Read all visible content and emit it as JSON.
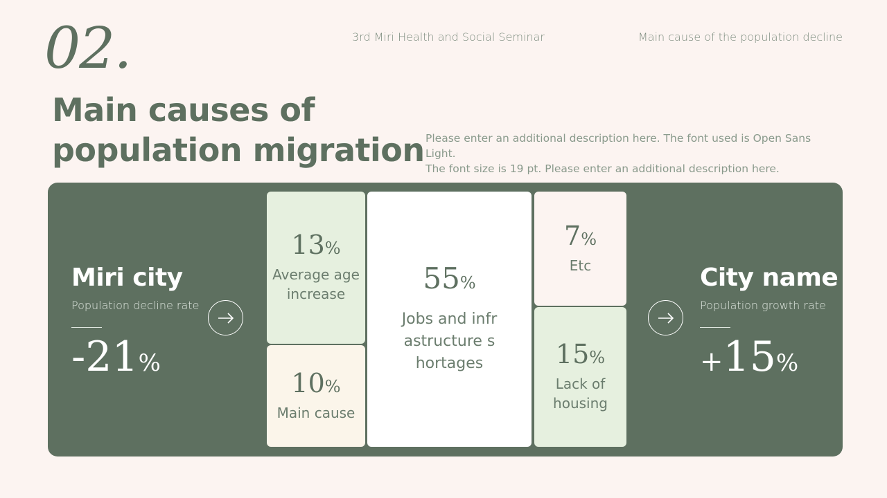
{
  "slide_number": "02.",
  "header": {
    "seminar": "3rd Miri Health and Social Seminar",
    "section": "Main cause of the population decline"
  },
  "title": {
    "line1": "Main causes of",
    "line2": "population migration"
  },
  "description": {
    "line1": "Please enter an additional description here. The font used is Open Sans Light.",
    "line2": "The font size is 19 pt. Please enter an additional description here."
  },
  "left": {
    "city": "Miri city",
    "rate_label": "Population decline rate",
    "value": "-21",
    "unit": "%"
  },
  "right": {
    "city": "City name",
    "rate_label": "Population growth rate",
    "sign": "+",
    "value": "15",
    "unit": "%"
  },
  "tiles": {
    "age": {
      "value": "13",
      "unit": "%",
      "label": "Average age increase"
    },
    "main": {
      "value": "10",
      "unit": "%",
      "label": "Main cause"
    },
    "jobs": {
      "value": "55",
      "unit": "%",
      "label": "Jobs and infrastructure shortages"
    },
    "etc": {
      "value": "7",
      "unit": "%",
      "label": "Etc"
    },
    "housing": {
      "value": "15",
      "unit": "%",
      "label": "Lack of housing"
    }
  },
  "colors": {
    "panel": "#5e7060",
    "background": "#fcf4f1",
    "tile_green": "#e6f0df",
    "tile_cream": "#fbf5ea"
  },
  "icons": {
    "arrow": "arrow-right-icon"
  }
}
